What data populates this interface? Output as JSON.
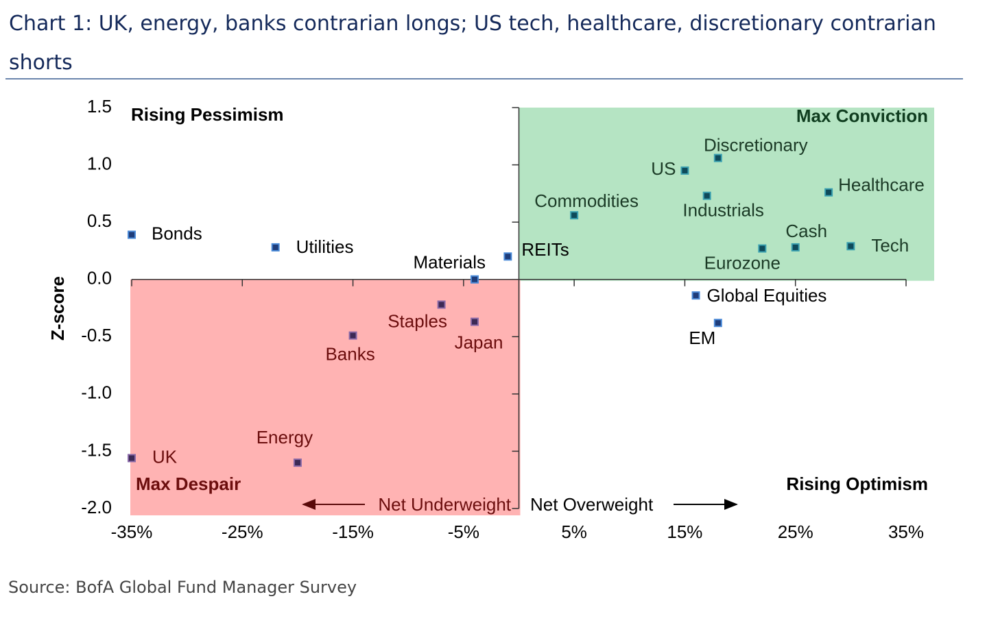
{
  "title": "Chart 1: UK, energy, banks contrarian longs; US tech, healthcare, discretionary contrarian shorts",
  "source": "Source: BofA Global Fund Manager Survey",
  "chart_data": {
    "type": "scatter",
    "y_label": "Z-score",
    "labels": [
      "Bonds",
      "Utilities",
      "Materials",
      "REITs",
      "Commodities",
      "US",
      "Discretionary",
      "Industrials",
      "Healthcare",
      "Cash",
      "Tech",
      "Eurozone",
      "Global Equities",
      "EM",
      "Staples",
      "Japan",
      "Banks",
      "Energy",
      "UK"
    ],
    "x": [
      -35,
      -22,
      -4,
      -1,
      5,
      15,
      18,
      17,
      28,
      25,
      30,
      22,
      16,
      18,
      -7,
      -4,
      -15,
      -20,
      -35
    ],
    "values": [
      0.39,
      0.28,
      0.0,
      0.2,
      0.56,
      0.95,
      1.06,
      0.73,
      0.76,
      0.28,
      0.29,
      0.27,
      -0.14,
      -0.38,
      -0.22,
      -0.37,
      -0.49,
      -1.6,
      -1.56
    ],
    "color": "#1f3d7a",
    "xlim": [
      -35,
      35
    ],
    "ylim": [
      -2,
      1.5
    ],
    "xticks": [
      {
        "value": -35,
        "label": "-35%"
      },
      {
        "value": -25,
        "label": "-25%"
      },
      {
        "value": -15,
        "label": "-15%"
      },
      {
        "value": -5,
        "label": "-5%"
      },
      {
        "value": 5,
        "label": "5%"
      },
      {
        "value": 15,
        "label": "15%"
      },
      {
        "value": 25,
        "label": "25%"
      },
      {
        "value": 35,
        "label": "35%"
      }
    ],
    "yticks": [
      {
        "value": 1.5,
        "label": "1.5"
      },
      {
        "value": 1,
        "label": "1.0"
      },
      {
        "value": 0.5,
        "label": "0.5"
      },
      {
        "value": 0,
        "label": "0.0"
      },
      {
        "value": -0.5,
        "label": "-0.5"
      },
      {
        "value": -1,
        "label": "-1.0"
      },
      {
        "value": -1.5,
        "label": "-1.5"
      },
      {
        "value": -2,
        "label": "-2.0"
      }
    ],
    "annotations": {
      "top_left": "Rising Pessimism",
      "top_right": "Max Conviction",
      "bottom_left": "Max Despair",
      "bottom_right": "Rising Optimism",
      "left_arrow": "Net Underweight",
      "right_arrow": "Net Overweight"
    }
  }
}
